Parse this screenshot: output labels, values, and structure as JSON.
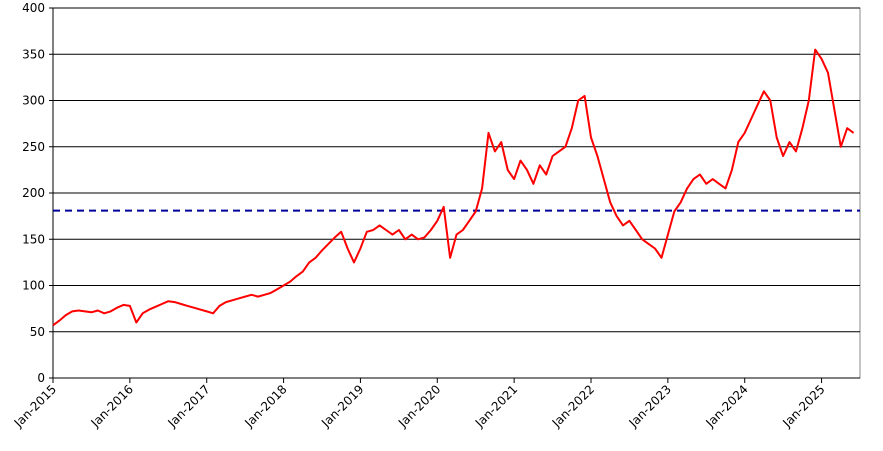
{
  "chart_data": {
    "type": "line",
    "x": [
      "2015-01",
      "2015-02",
      "2015-03",
      "2015-04",
      "2015-05",
      "2015-06",
      "2015-07",
      "2015-08",
      "2015-09",
      "2015-10",
      "2015-11",
      "2015-12",
      "2016-01",
      "2016-02",
      "2016-03",
      "2016-04",
      "2016-05",
      "2016-06",
      "2016-07",
      "2016-08",
      "2016-09",
      "2016-10",
      "2016-11",
      "2016-12",
      "2017-01",
      "2017-02",
      "2017-03",
      "2017-04",
      "2017-05",
      "2017-06",
      "2017-07",
      "2017-08",
      "2017-09",
      "2017-10",
      "2017-11",
      "2017-12",
      "2018-01",
      "2018-02",
      "2018-03",
      "2018-04",
      "2018-05",
      "2018-06",
      "2018-07",
      "2018-08",
      "2018-09",
      "2018-10",
      "2018-11",
      "2018-12",
      "2019-01",
      "2019-02",
      "2019-03",
      "2019-04",
      "2019-05",
      "2019-06",
      "2019-07",
      "2019-08",
      "2019-09",
      "2019-10",
      "2019-11",
      "2019-12",
      "2020-01",
      "2020-02",
      "2020-03",
      "2020-04",
      "2020-05",
      "2020-06",
      "2020-07",
      "2020-08",
      "2020-09",
      "2020-10",
      "2020-11",
      "2020-12",
      "2021-01",
      "2021-02",
      "2021-03",
      "2021-04",
      "2021-05",
      "2021-06",
      "2021-07",
      "2021-08",
      "2021-09",
      "2021-10",
      "2021-11",
      "2021-12",
      "2022-01",
      "2022-02",
      "2022-03",
      "2022-04",
      "2022-05",
      "2022-06",
      "2022-07",
      "2022-08",
      "2022-09",
      "2022-10",
      "2022-11",
      "2022-12",
      "2023-01",
      "2023-02",
      "2023-03",
      "2023-04",
      "2023-05",
      "2023-06",
      "2023-07",
      "2023-08",
      "2023-09",
      "2023-10",
      "2023-11",
      "2023-12",
      "2024-01",
      "2024-02",
      "2024-03",
      "2024-04",
      "2024-05",
      "2024-06",
      "2024-07",
      "2024-08",
      "2024-09",
      "2024-10",
      "2024-11",
      "2024-12",
      "2025-01",
      "2025-02",
      "2025-03",
      "2025-04",
      "2025-05",
      "2025-06"
    ],
    "values": [
      57,
      62,
      68,
      72,
      73,
      72,
      71,
      73,
      70,
      72,
      76,
      79,
      78,
      60,
      70,
      74,
      77,
      80,
      83,
      82,
      80,
      78,
      76,
      74,
      72,
      70,
      78,
      82,
      84,
      86,
      88,
      90,
      88,
      90,
      92,
      96,
      100,
      104,
      110,
      115,
      125,
      130,
      138,
      145,
      152,
      158,
      140,
      125,
      140,
      158,
      160,
      165,
      160,
      155,
      160,
      150,
      155,
      150,
      152,
      160,
      170,
      185,
      130,
      155,
      160,
      170,
      180,
      205,
      265,
      245,
      255,
      225,
      215,
      235,
      225,
      210,
      230,
      220,
      240,
      245,
      250,
      270,
      300,
      305,
      260,
      240,
      215,
      190,
      175,
      165,
      170,
      160,
      150,
      145,
      140,
      130,
      155,
      180,
      190,
      205,
      215,
      220,
      210,
      215,
      210,
      205,
      225,
      255,
      265,
      280,
      295,
      310,
      300,
      260,
      240,
      255,
      245,
      270,
      300,
      355,
      345,
      330,
      290,
      250,
      270,
      265
    ],
    "color": "#ff0000",
    "hline": {
      "value": 181,
      "color": "#000099"
    },
    "xlim": [
      "2015-01",
      "2025-07"
    ],
    "xticks": [
      {
        "value": "2015-01",
        "label": "Jan-2015"
      },
      {
        "value": "2016-01",
        "label": "Jan-2016"
      },
      {
        "value": "2017-01",
        "label": "Jan-2017"
      },
      {
        "value": "2018-01",
        "label": "Jan-2018"
      },
      {
        "value": "2019-01",
        "label": "Jan-2019"
      },
      {
        "value": "2020-01",
        "label": "Jan-2020"
      },
      {
        "value": "2021-01",
        "label": "Jan-2021"
      },
      {
        "value": "2022-01",
        "label": "Jan-2022"
      },
      {
        "value": "2023-01",
        "label": "Jan-2023"
      },
      {
        "value": "2024-01",
        "label": "Jan-2024"
      },
      {
        "value": "2025-01",
        "label": "Jan-2025"
      }
    ],
    "ylim": [
      0,
      400
    ],
    "yticks": [
      0,
      50,
      100,
      150,
      200,
      250,
      300,
      350,
      400
    ],
    "grid": true
  }
}
